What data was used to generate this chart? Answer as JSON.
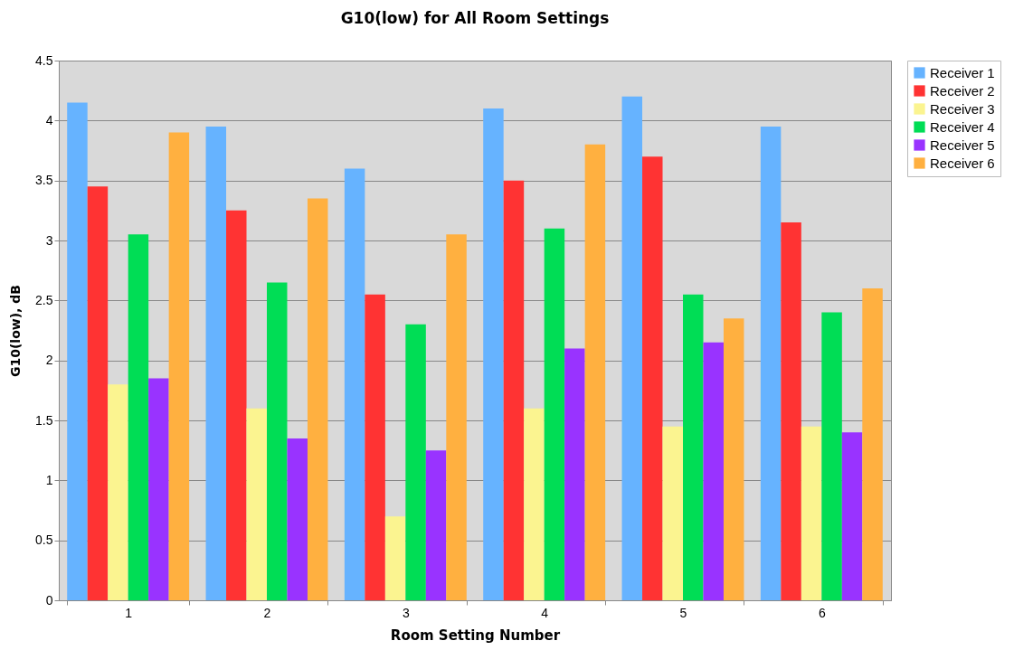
{
  "chart_data": {
    "type": "bar",
    "title": "G10(low) for All Room Settings",
    "xlabel": "Room Setting Number",
    "ylabel": "G10(low), dB",
    "categories": [
      "1",
      "2",
      "3",
      "4",
      "5",
      "6"
    ],
    "series": [
      {
        "name": "Receiver 1",
        "color": "#66b3ff",
        "values": [
          4.15,
          3.95,
          3.6,
          4.1,
          4.2,
          3.95
        ]
      },
      {
        "name": "Receiver 2",
        "color": "#ff3333",
        "values": [
          3.45,
          3.25,
          2.55,
          3.5,
          3.7,
          3.15
        ]
      },
      {
        "name": "Receiver 3",
        "color": "#fbf490",
        "values": [
          1.8,
          1.6,
          0.7,
          1.6,
          1.45,
          1.45
        ]
      },
      {
        "name": "Receiver 4",
        "color": "#00dd55",
        "values": [
          3.05,
          2.65,
          2.3,
          3.1,
          2.55,
          2.4
        ]
      },
      {
        "name": "Receiver 5",
        "color": "#9933ff",
        "values": [
          1.85,
          1.35,
          1.25,
          2.1,
          2.15,
          1.4
        ]
      },
      {
        "name": "Receiver 6",
        "color": "#ffb040",
        "values": [
          3.9,
          3.35,
          3.05,
          3.8,
          2.35,
          2.6
        ]
      }
    ],
    "ylim": [
      0,
      4.5
    ],
    "yticks": [
      0,
      0.5,
      1,
      1.5,
      2,
      2.5,
      3,
      3.5,
      4,
      4.5
    ],
    "grid": "y",
    "legend": "right"
  }
}
